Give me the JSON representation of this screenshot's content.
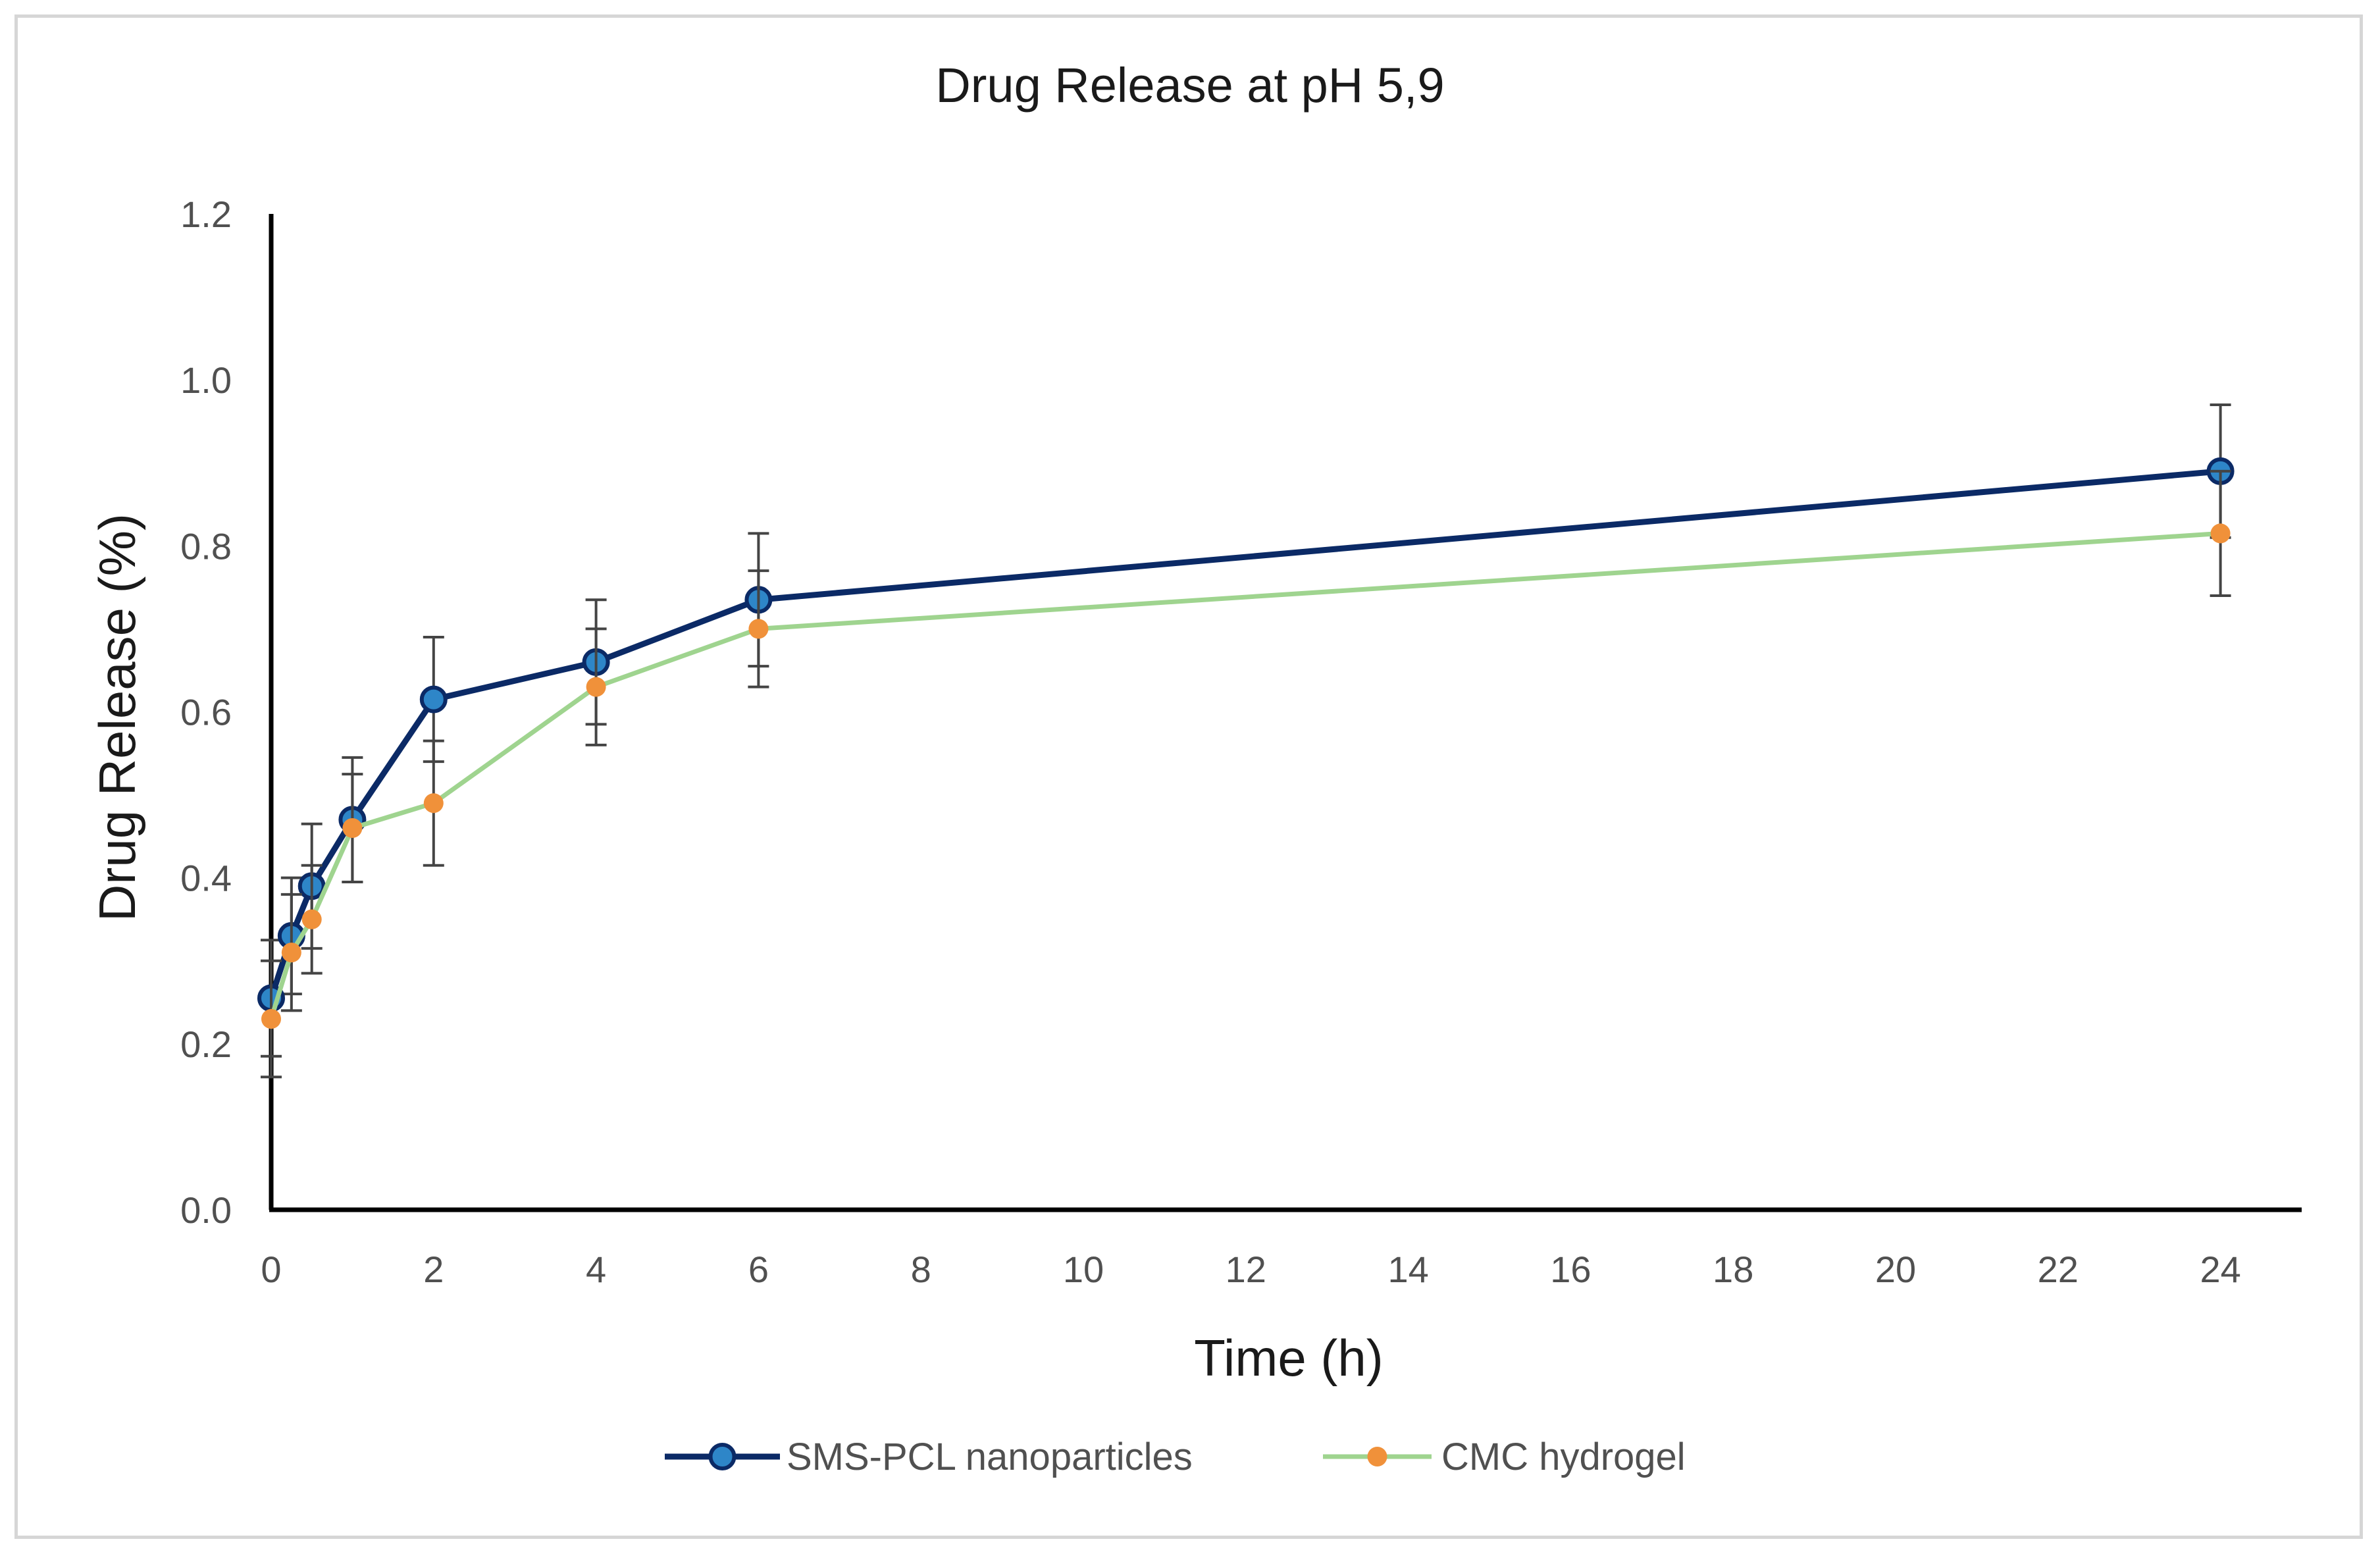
{
  "chart_data": {
    "type": "line",
    "title": "Drug Release at pH 5,9",
    "xlabel": "Time (h)",
    "ylabel": "Drug Release (%)",
    "xlim": [
      0,
      25
    ],
    "ylim": [
      0,
      1.2
    ],
    "x_ticks": [
      "0",
      "2",
      "4",
      "6",
      "8",
      "10",
      "12",
      "14",
      "16",
      "18",
      "20",
      "22",
      "24"
    ],
    "y_ticks": [
      "0.0",
      "0.2",
      "0.4",
      "0.6",
      "0.8",
      "1.0",
      "1.2"
    ],
    "grid": false,
    "legend_position": "bottom",
    "series": [
      {
        "name": "SMS-PCL nanoparticles",
        "color": "#0b2a66",
        "marker_color": "#2e86c8",
        "x": [
          0,
          0.25,
          0.5,
          1,
          2,
          4,
          6,
          24
        ],
        "y": [
          0.255,
          0.33,
          0.39,
          0.47,
          0.615,
          0.66,
          0.735,
          0.89
        ],
        "error": [
          0.07,
          0.07,
          0.075,
          0.075,
          0.075,
          0.075,
          0.08,
          0.08
        ]
      },
      {
        "name": "CMC hydrogel",
        "color": "#9fd48f",
        "marker_color": "#f0913a",
        "x": [
          0,
          0.25,
          0.5,
          1,
          2,
          4,
          6,
          24
        ],
        "y": [
          0.23,
          0.31,
          0.35,
          0.46,
          0.49,
          0.63,
          0.7,
          0.815
        ],
        "error": [
          0.07,
          0.07,
          0.065,
          0.065,
          0.075,
          0.07,
          0.07,
          0.075
        ]
      }
    ]
  }
}
